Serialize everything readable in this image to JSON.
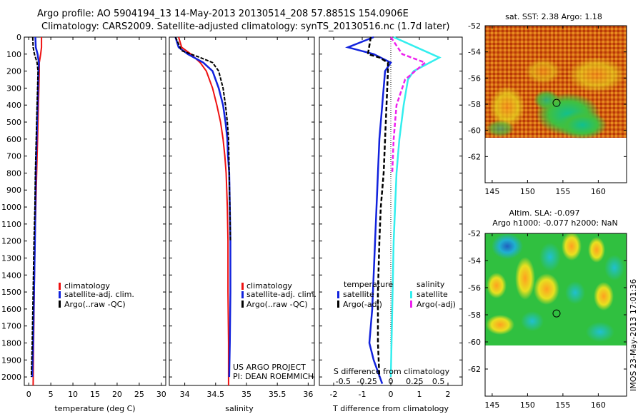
{
  "header": {
    "line1": "Argo profile: AO 5904194_13 14-May-2013 20130514_208 57.8851S 154.0906E",
    "line2": "Climatology: CARS2009. Satellite-adjusted climatology: synTS_20130516.nc (1.7d later)"
  },
  "side_stamp": "IMOS 23-May-2013 17:01:36",
  "colors": {
    "climatology": "#ee1111",
    "satellite": "#1122dd",
    "argo": "#000000",
    "sal_satellite": "#33eeee",
    "sal_argo": "#ee22ee"
  },
  "chart_data": [
    {
      "type": "line",
      "panel": "temperature",
      "xlabel": "temperature (deg C)",
      "xlim": [
        -1,
        31
      ],
      "xticks": [
        "0",
        "5",
        "10",
        "15",
        "20",
        "25",
        "30"
      ],
      "ylim": [
        0,
        2050
      ],
      "yticks": [
        "0",
        "100",
        "200",
        "300",
        "400",
        "500",
        "600",
        "700",
        "800",
        "900",
        "1000",
        "1100",
        "1200",
        "1300",
        "1400",
        "1500",
        "1600",
        "1700",
        "1800",
        "1900",
        "2000"
      ],
      "legend": [
        "climatology",
        "satellite-adj. clim.",
        "Argo(..raw -QC)"
      ],
      "series": [
        {
          "name": "climatology",
          "x": [
            2.9,
            2.9,
            2.7,
            2.4,
            2.4,
            2.3,
            2.2,
            2.1,
            2.0,
            1.9,
            1.8,
            1.7,
            1.6,
            1.5,
            1.4,
            1.3,
            1.2,
            1.1,
            1.0
          ],
          "y": [
            0,
            60,
            100,
            150,
            200,
            300,
            400,
            500,
            600,
            700,
            800,
            900,
            1000,
            1100,
            1200,
            1400,
            1600,
            1800,
            2050
          ]
        },
        {
          "name": "satellite-adj. clim.",
          "x": [
            1.5,
            1.6,
            2.0,
            2.3,
            2.2,
            2.1,
            2.0,
            1.9,
            1.8,
            1.7,
            1.6,
            1.5,
            1.4,
            1.2,
            1.0,
            0.8
          ],
          "y": [
            0,
            60,
            100,
            150,
            200,
            300,
            400,
            500,
            600,
            700,
            800,
            1000,
            1200,
            1500,
            1800,
            2000
          ]
        },
        {
          "name": "Argo(..raw -QC)",
          "x": [
            0.9,
            1.0,
            1.3,
            1.9,
            2.1,
            2.0,
            1.9,
            1.8,
            1.7,
            1.6,
            1.5,
            1.4,
            1.2,
            1.0,
            0.8,
            0.6
          ],
          "y": [
            0,
            60,
            100,
            150,
            200,
            300,
            400,
            500,
            600,
            700,
            800,
            1000,
            1200,
            1500,
            1800,
            2000
          ]
        }
      ]
    },
    {
      "type": "line",
      "panel": "salinity",
      "xlabel": "salinity",
      "xlim": [
        33.75,
        36.1
      ],
      "xticks": [
        "34",
        "34.5",
        "35",
        "35.5",
        "36"
      ],
      "ylim": [
        0,
        2050
      ],
      "legend": [
        "climatology",
        "satellite-adj. clim.",
        "Argo(..raw -QC)"
      ],
      "credit": [
        "US ARGO PROJECT",
        "PI: DEAN ROEMMICH"
      ],
      "series": [
        {
          "name": "climatology",
          "x": [
            33.9,
            33.95,
            34.1,
            34.25,
            34.35,
            34.45,
            34.52,
            34.58,
            34.62,
            34.65,
            34.67,
            34.69,
            34.7,
            34.7,
            34.71,
            34.71
          ],
          "y": [
            0,
            60,
            100,
            150,
            200,
            300,
            400,
            500,
            600,
            700,
            800,
            1000,
            1200,
            1500,
            1800,
            2050
          ]
        },
        {
          "name": "satellite-adj. clim.",
          "x": [
            33.85,
            33.9,
            34.05,
            34.3,
            34.45,
            34.55,
            34.62,
            34.66,
            34.69,
            34.7,
            34.72,
            34.73,
            34.74,
            34.74,
            34.73,
            34.72
          ],
          "y": [
            0,
            60,
            100,
            150,
            200,
            300,
            400,
            500,
            600,
            700,
            800,
            1000,
            1200,
            1500,
            1800,
            2000
          ]
        },
        {
          "name": "Argo(..raw -QC)",
          "x": [
            33.85,
            33.95,
            34.25,
            34.45,
            34.55,
            34.62,
            34.66,
            34.69,
            34.71,
            34.72,
            34.73,
            34.74
          ],
          "y": [
            0,
            80,
            120,
            150,
            200,
            300,
            400,
            500,
            600,
            800,
            1000,
            1200
          ]
        }
      ]
    },
    {
      "type": "line",
      "panel": "difference",
      "xlabel": "T difference from climatology",
      "xlabel_top": "S difference from climatology",
      "xlim": [
        -2.5,
        2.5
      ],
      "xticks": [
        "-2",
        "-1",
        "0",
        "1",
        "2"
      ],
      "xticks_top": [
        "-0.5",
        "-0.25",
        "0",
        "0.25",
        "0.5"
      ],
      "ylim": [
        0,
        2050
      ],
      "legend_temperature_title": "temperature",
      "legend_salinity_title": "salinity",
      "legend": [
        "satellite",
        "Argo(-adj)",
        "satellite",
        "Argo(-adj)"
      ],
      "series": [
        {
          "name": "satellite",
          "x": [
            -0.6,
            -1.5,
            -0.6,
            0.0,
            -0.2,
            -0.3,
            -0.35,
            -0.4,
            -0.45,
            -0.5,
            -0.55,
            -0.6,
            -0.65,
            -0.7,
            -0.75,
            -0.6,
            -0.3
          ],
          "y": [
            0,
            60,
            100,
            150,
            200,
            400,
            500,
            600,
            800,
            1000,
            1200,
            1400,
            1600,
            1700,
            1800,
            1900,
            2040
          ]
        },
        {
          "name": "Argo(-adj)",
          "x": [
            -0.7,
            -0.8,
            -0.4,
            -0.1,
            -0.1,
            -0.15,
            -0.2,
            -0.25,
            -0.35,
            -0.4,
            -0.45,
            -0.45,
            -0.4
          ],
          "y": [
            0,
            100,
            120,
            150,
            200,
            400,
            600,
            800,
            1000,
            1200,
            1500,
            1800,
            2000
          ]
        },
        {
          "name": "satellite",
          "x": [
            0.1,
            0.9,
            1.7,
            0.8,
            0.6,
            0.45,
            0.3,
            0.2,
            0.15,
            0.1,
            0.05,
            0.0
          ],
          "y": [
            0,
            60,
            120,
            200,
            250,
            400,
            600,
            800,
            1000,
            1200,
            1600,
            2000
          ]
        },
        {
          "name": "Argo(-adj)",
          "x": [
            0.0,
            0.4,
            1.2,
            0.5,
            0.2,
            0.1,
            0.05
          ],
          "y": [
            0,
            100,
            150,
            250,
            400,
            600,
            800
          ]
        }
      ]
    },
    {
      "type": "heatmap",
      "panel": "sst",
      "title": "sat. SST: 2.38  Argo: 1.18",
      "xlim": [
        144,
        164
      ],
      "ylim": [
        -64,
        -52
      ],
      "xticks": [
        "145",
        "150",
        "155",
        "160"
      ],
      "yticks": [
        "-52",
        "-54",
        "-56",
        "-58",
        "-60",
        "-62"
      ],
      "data_extent_lat": [
        -60,
        -52
      ],
      "marker": {
        "lon": 154.1,
        "lat": -57.9
      }
    },
    {
      "type": "heatmap",
      "panel": "sla",
      "title": "Altim. SLA: -0.097",
      "subtitle": "Argo h1000: -0.077  h2000: NaN",
      "xlim": [
        144,
        164
      ],
      "ylim": [
        -64,
        -52
      ],
      "xticks": [
        "145",
        "150",
        "155",
        "160"
      ],
      "yticks": [
        "-52",
        "-54",
        "-56",
        "-58",
        "-60",
        "-62"
      ],
      "data_extent_lat": [
        -60,
        -52
      ],
      "marker": {
        "lon": 154.1,
        "lat": -57.9
      }
    }
  ]
}
